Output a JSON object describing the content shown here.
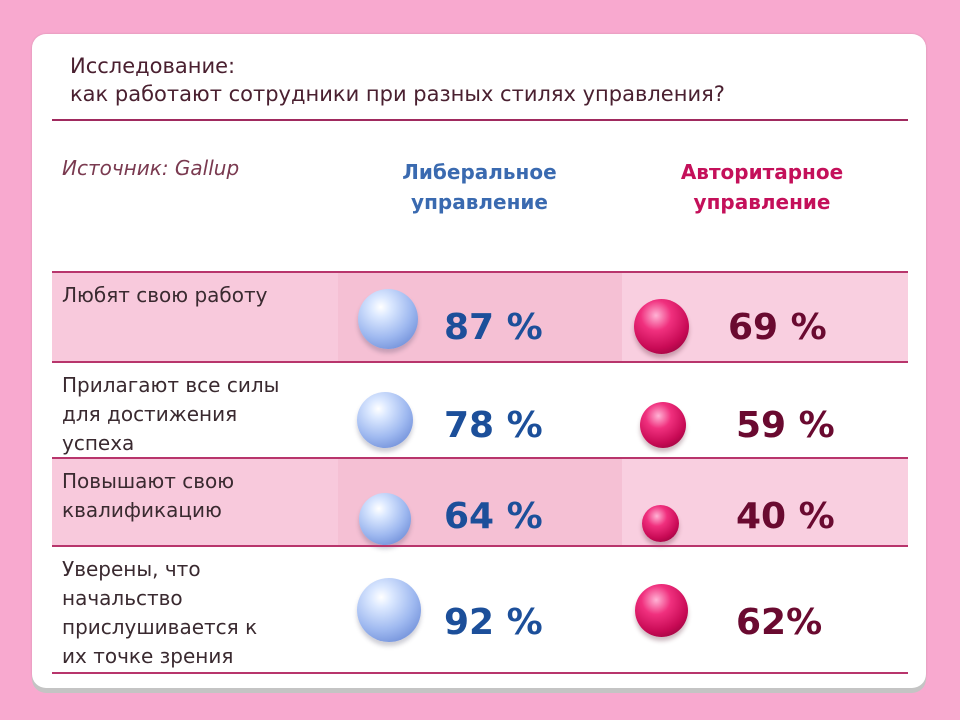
{
  "header": {
    "title_line1": "Исследование:",
    "title_line2": "как работают сотрудники при разных стилях управления?"
  },
  "table": {
    "source": "Источник: Gallup",
    "col_liberal": [
      "Либеральное",
      "управление"
    ],
    "col_authoritarian": [
      "Авторитарное",
      "управление"
    ],
    "rows": [
      {
        "label": [
          "Любят свою работу"
        ],
        "liberal": "87 %",
        "authoritarian": "69 %",
        "liberal_value": 87,
        "authoritarian_value": 69
      },
      {
        "label": [
          "Прилагают все силы",
          "для достижения",
          "успеха"
        ],
        "liberal": "78 %",
        "authoritarian": "59 %",
        "liberal_value": 78,
        "authoritarian_value": 59
      },
      {
        "label": [
          "Повышают свою",
          "квалификацию"
        ],
        "liberal": "64 %",
        "authoritarian": "40 %",
        "liberal_value": 64,
        "authoritarian_value": 40
      },
      {
        "label": [
          "Уверены, что",
          "начальство",
          "прислушивается к",
          "их точке зрения"
        ],
        "liberal": "92 %",
        "authoritarian": "62%",
        "liberal_value": 92,
        "authoritarian_value": 62
      }
    ]
  },
  "colors": {
    "background": "#f8a9cf",
    "liberal": "#3a6ab0",
    "authoritarian": "#c4105a",
    "rule": "#b8356c"
  }
}
